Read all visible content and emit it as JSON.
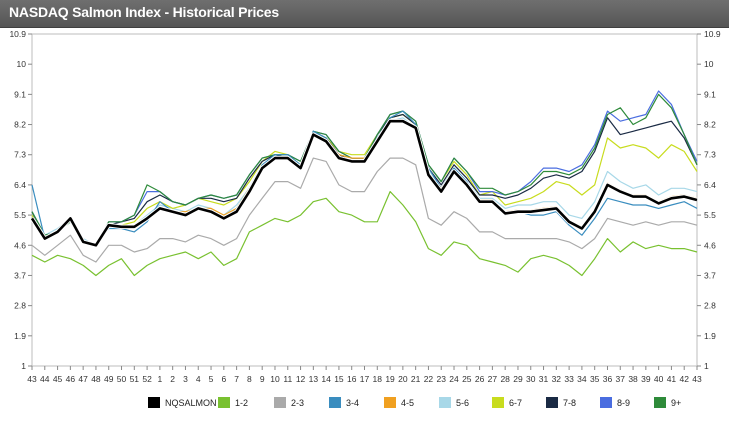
{
  "header": {
    "title": "NASDAQ Salmon Index - Historical Prices"
  },
  "chart_data": {
    "type": "line",
    "title": "NASDAQ Salmon Index - Historical Prices",
    "xlabel": "",
    "ylabel": "",
    "ylim": [
      1,
      10.9
    ],
    "yticks": [
      "1",
      "1.9",
      "2.8",
      "3.7",
      "4.6",
      "5.5",
      "6.4",
      "7.3",
      "8.2",
      "9.1",
      "10",
      "10.9"
    ],
    "grid": false,
    "legend_position": "bottom",
    "x": [
      "43",
      "44",
      "45",
      "46",
      "47",
      "48",
      "49",
      "50",
      "51",
      "52",
      "1",
      "2",
      "3",
      "4",
      "5",
      "6",
      "7",
      "8",
      "9",
      "10",
      "11",
      "12",
      "13",
      "14",
      "15",
      "16",
      "17",
      "18",
      "19",
      "20",
      "21",
      "22",
      "23",
      "24",
      "25",
      "26",
      "27",
      "28",
      "29",
      "30",
      "31",
      "32",
      "33",
      "34",
      "35",
      "36",
      "37",
      "38",
      "39",
      "40",
      "41",
      "42",
      "43"
    ],
    "series": [
      {
        "name": "NQSALMON",
        "color": "#000000",
        "values": [
          5.4,
          4.8,
          5.0,
          5.4,
          4.7,
          4.6,
          5.2,
          5.15,
          5.15,
          5.4,
          5.7,
          5.6,
          5.5,
          5.7,
          5.6,
          5.4,
          5.6,
          6.2,
          6.9,
          7.2,
          7.2,
          6.9,
          7.9,
          7.7,
          7.2,
          7.1,
          7.1,
          7.7,
          8.3,
          8.3,
          8.1,
          6.7,
          6.2,
          6.8,
          6.4,
          5.9,
          5.9,
          5.55,
          5.6,
          5.6,
          5.65,
          5.7,
          5.3,
          5.1,
          5.6,
          6.4,
          6.2,
          6.05,
          6.05,
          5.85,
          6.0,
          6.05,
          5.95
        ]
      },
      {
        "name": "1-2",
        "color": "#79c130",
        "values": [
          4.3,
          4.1,
          4.3,
          4.2,
          4.0,
          3.7,
          4.0,
          4.2,
          3.7,
          4.0,
          4.2,
          4.3,
          4.4,
          4.2,
          4.4,
          4.0,
          4.2,
          5.0,
          5.2,
          5.4,
          5.3,
          5.5,
          5.9,
          6.0,
          5.6,
          5.5,
          5.3,
          5.3,
          6.2,
          5.8,
          5.3,
          4.5,
          4.3,
          4.7,
          4.6,
          4.2,
          4.1,
          4.0,
          3.8,
          4.2,
          4.3,
          4.2,
          4.0,
          3.7,
          4.2,
          4.8,
          4.4,
          4.7,
          4.5,
          4.6,
          4.5,
          4.5,
          4.4
        ]
      },
      {
        "name": "2-3",
        "color": "#aaaaaa",
        "values": [
          4.6,
          4.3,
          4.6,
          4.9,
          4.3,
          4.1,
          4.6,
          4.6,
          4.4,
          4.5,
          4.8,
          4.8,
          4.7,
          4.9,
          4.8,
          4.6,
          4.8,
          5.5,
          6.0,
          6.5,
          6.5,
          6.3,
          7.2,
          7.1,
          6.4,
          6.2,
          6.2,
          6.8,
          7.2,
          7.2,
          7.0,
          5.4,
          5.2,
          5.6,
          5.4,
          5.0,
          5.0,
          4.8,
          4.8,
          4.8,
          4.8,
          4.8,
          4.7,
          4.5,
          4.8,
          5.4,
          5.3,
          5.2,
          5.3,
          5.2,
          5.3,
          5.3,
          5.2
        ]
      },
      {
        "name": "3-4",
        "color": "#3a8dbf",
        "values": [
          6.4,
          4.8,
          5.0,
          5.4,
          4.7,
          4.6,
          5.1,
          5.1,
          5.0,
          5.3,
          5.9,
          5.6,
          5.5,
          5.7,
          5.6,
          5.4,
          5.7,
          6.3,
          7.0,
          7.3,
          7.3,
          7.0,
          8.0,
          7.8,
          7.2,
          7.1,
          7.1,
          7.8,
          8.4,
          8.6,
          8.2,
          6.9,
          6.3,
          6.9,
          6.5,
          5.9,
          5.9,
          5.5,
          5.6,
          5.5,
          5.5,
          5.6,
          5.2,
          4.9,
          5.4,
          6.0,
          5.9,
          5.8,
          5.8,
          5.7,
          5.8,
          5.9,
          5.7
        ]
      },
      {
        "name": "4-5",
        "color": "#f0a020",
        "values": [
          5.4,
          4.8,
          5.0,
          5.4,
          4.7,
          4.6,
          5.2,
          5.2,
          5.2,
          5.4,
          5.7,
          5.6,
          5.6,
          5.7,
          5.7,
          5.5,
          5.7,
          6.3,
          6.9,
          7.2,
          7.2,
          6.9,
          7.9,
          7.7,
          7.3,
          7.2,
          7.2,
          7.7,
          8.3,
          8.3,
          8.1,
          6.7,
          6.3,
          6.8,
          6.4,
          5.95,
          5.95,
          5.6,
          5.65,
          5.65,
          5.7,
          5.75,
          5.35,
          5.15,
          5.65,
          6.45,
          6.25,
          6.1,
          6.1,
          5.9,
          6.05,
          6.1,
          6.0
        ]
      },
      {
        "name": "5-6",
        "color": "#a8d8e8",
        "values": [
          5.5,
          4.9,
          5.1,
          5.4,
          4.8,
          4.6,
          5.2,
          5.2,
          5.2,
          5.5,
          5.8,
          5.7,
          5.6,
          5.8,
          5.7,
          5.5,
          5.8,
          6.3,
          7.0,
          7.2,
          7.2,
          7.0,
          7.9,
          7.7,
          7.3,
          7.2,
          7.2,
          7.8,
          8.3,
          8.4,
          8.1,
          6.8,
          6.3,
          6.9,
          6.5,
          6.0,
          6.0,
          5.7,
          5.8,
          5.8,
          5.9,
          5.9,
          5.5,
          5.4,
          5.9,
          6.8,
          6.5,
          6.3,
          6.4,
          6.1,
          6.3,
          6.3,
          6.2
        ]
      },
      {
        "name": "6-7",
        "color": "#c8dc1e",
        "values": [
          5.5,
          4.8,
          5.0,
          5.3,
          4.7,
          4.6,
          5.2,
          5.2,
          5.3,
          5.7,
          5.9,
          5.7,
          5.8,
          6.0,
          5.9,
          5.8,
          6.0,
          6.5,
          7.1,
          7.4,
          7.3,
          7.0,
          7.9,
          7.8,
          7.4,
          7.3,
          7.3,
          7.9,
          8.4,
          8.5,
          8.2,
          7.0,
          6.5,
          7.1,
          6.7,
          6.1,
          6.2,
          5.8,
          5.9,
          6.0,
          6.2,
          6.5,
          6.4,
          6.1,
          6.4,
          7.8,
          7.5,
          7.6,
          7.5,
          7.2,
          7.6,
          7.4,
          6.8
        ]
      },
      {
        "name": "7-8",
        "color": "#1a2a44",
        "values": [
          5.6,
          4.8,
          5.0,
          5.4,
          4.7,
          4.6,
          5.2,
          5.3,
          5.4,
          5.9,
          6.1,
          5.9,
          5.8,
          6.0,
          6.0,
          5.9,
          6.0,
          6.6,
          7.1,
          7.3,
          7.2,
          7.0,
          8.0,
          7.8,
          7.3,
          7.1,
          7.1,
          7.9,
          8.4,
          8.5,
          8.2,
          6.9,
          6.4,
          7.0,
          6.6,
          6.1,
          6.1,
          6.0,
          6.1,
          6.3,
          6.6,
          6.7,
          6.6,
          6.8,
          7.4,
          8.4,
          7.9,
          8.0,
          8.1,
          8.2,
          8.3,
          7.8,
          7.0
        ]
      },
      {
        "name": "8-9",
        "color": "#4a6de0",
        "values": [
          5.6,
          4.9,
          5.0,
          5.3,
          4.7,
          4.6,
          5.3,
          5.3,
          5.5,
          6.2,
          6.2,
          5.9,
          5.8,
          6.0,
          6.1,
          6.0,
          6.1,
          6.7,
          7.2,
          7.3,
          7.3,
          7.1,
          8.0,
          7.9,
          7.4,
          7.2,
          7.2,
          7.9,
          8.5,
          8.6,
          8.3,
          7.0,
          6.5,
          7.2,
          6.8,
          6.2,
          6.2,
          6.1,
          6.2,
          6.5,
          6.9,
          6.9,
          6.8,
          7.0,
          7.6,
          8.6,
          8.3,
          8.4,
          8.5,
          9.2,
          8.8,
          7.9,
          7.1
        ]
      },
      {
        "name": "9+",
        "color": "#2e8b3a",
        "values": [
          5.6,
          4.9,
          5.0,
          5.3,
          4.7,
          4.6,
          5.3,
          5.3,
          5.5,
          6.4,
          6.2,
          5.9,
          5.8,
          6.0,
          6.1,
          6.0,
          6.1,
          6.7,
          7.2,
          7.3,
          7.3,
          7.1,
          8.0,
          7.9,
          7.4,
          7.2,
          7.2,
          7.9,
          8.5,
          8.6,
          8.3,
          7.0,
          6.5,
          7.2,
          6.8,
          6.3,
          6.3,
          6.1,
          6.2,
          6.4,
          6.8,
          6.8,
          6.7,
          6.9,
          7.5,
          8.5,
          8.7,
          8.2,
          8.4,
          9.1,
          8.7,
          7.9,
          7.0
        ]
      }
    ]
  }
}
